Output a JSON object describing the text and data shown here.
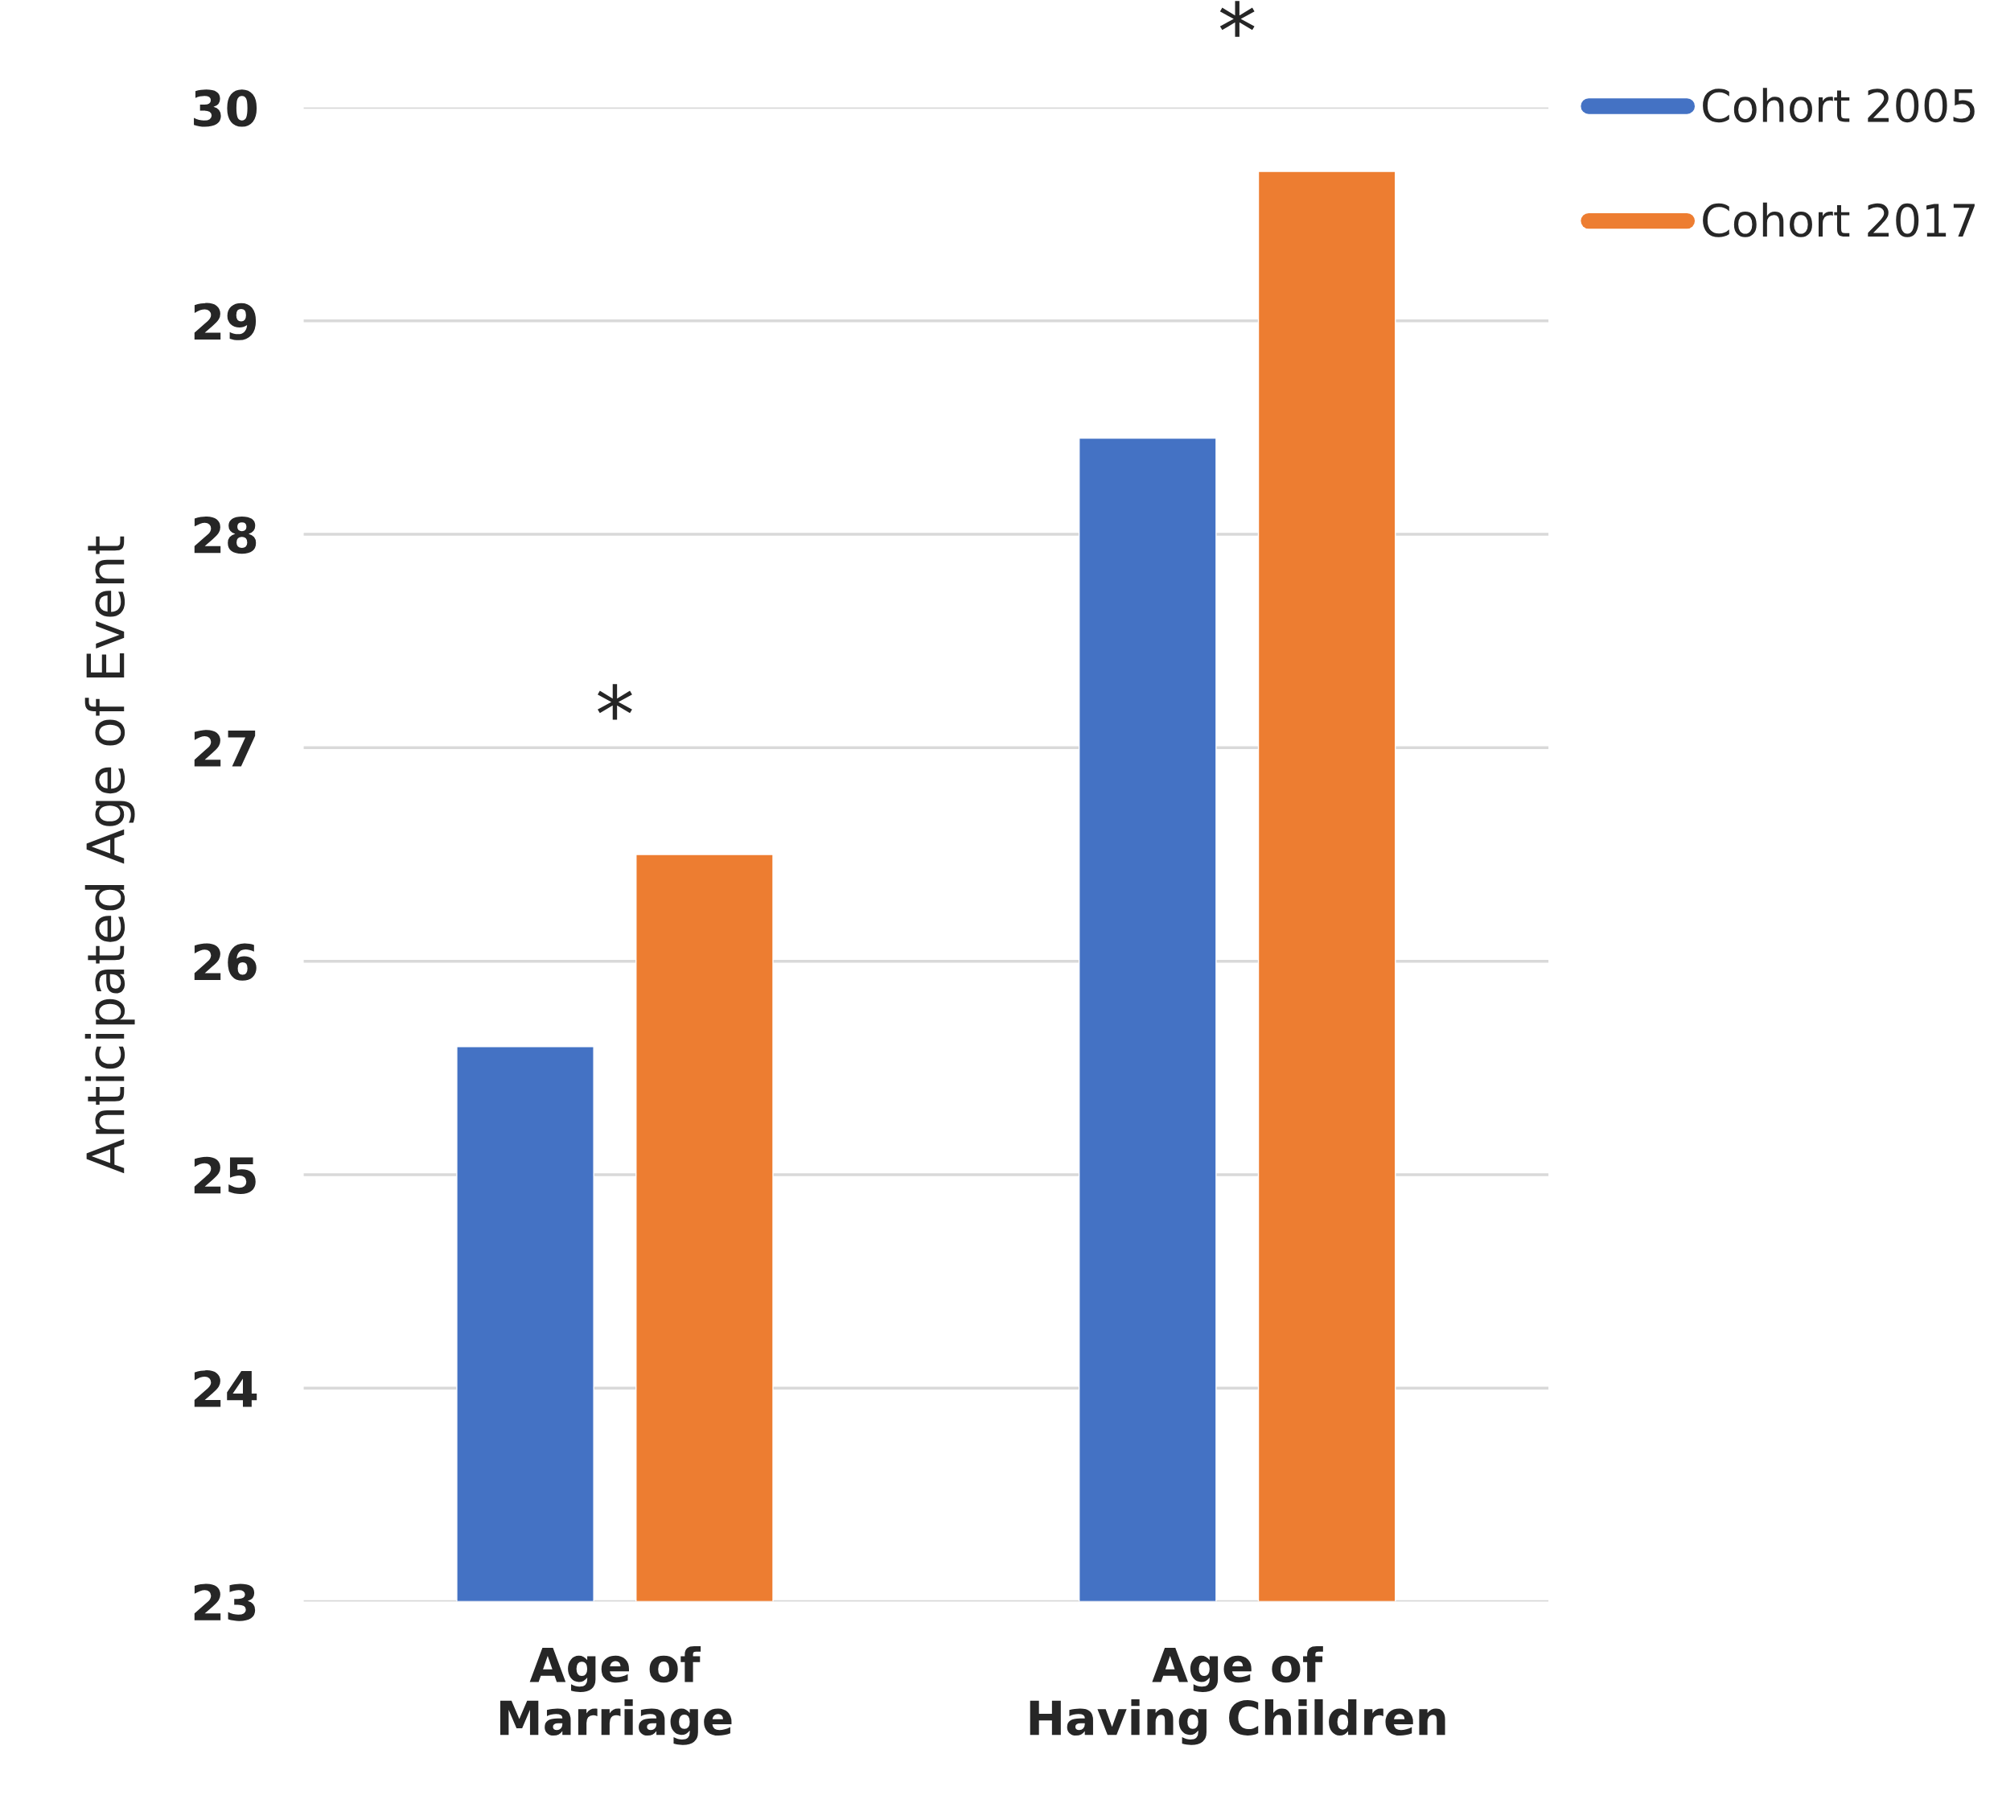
{
  "chart_data": {
    "type": "bar",
    "ylabel": "Anticipated Age of Event",
    "categories": [
      "Age of\nMarriage",
      "Age of\nHaving Children"
    ],
    "series": [
      {
        "name": "Cohort 2005",
        "color": "#4472c4",
        "values": [
          25.6,
          28.45
        ]
      },
      {
        "name": "Cohort 2017",
        "color": "#ed7d31",
        "values": [
          26.5,
          29.7
        ]
      }
    ],
    "ylim": [
      23,
      30
    ],
    "yticks": [
      23,
      24,
      25,
      26,
      27,
      28,
      29,
      30
    ],
    "grid": "y",
    "legend": "top right",
    "annotations": [
      "*",
      "*"
    ]
  }
}
